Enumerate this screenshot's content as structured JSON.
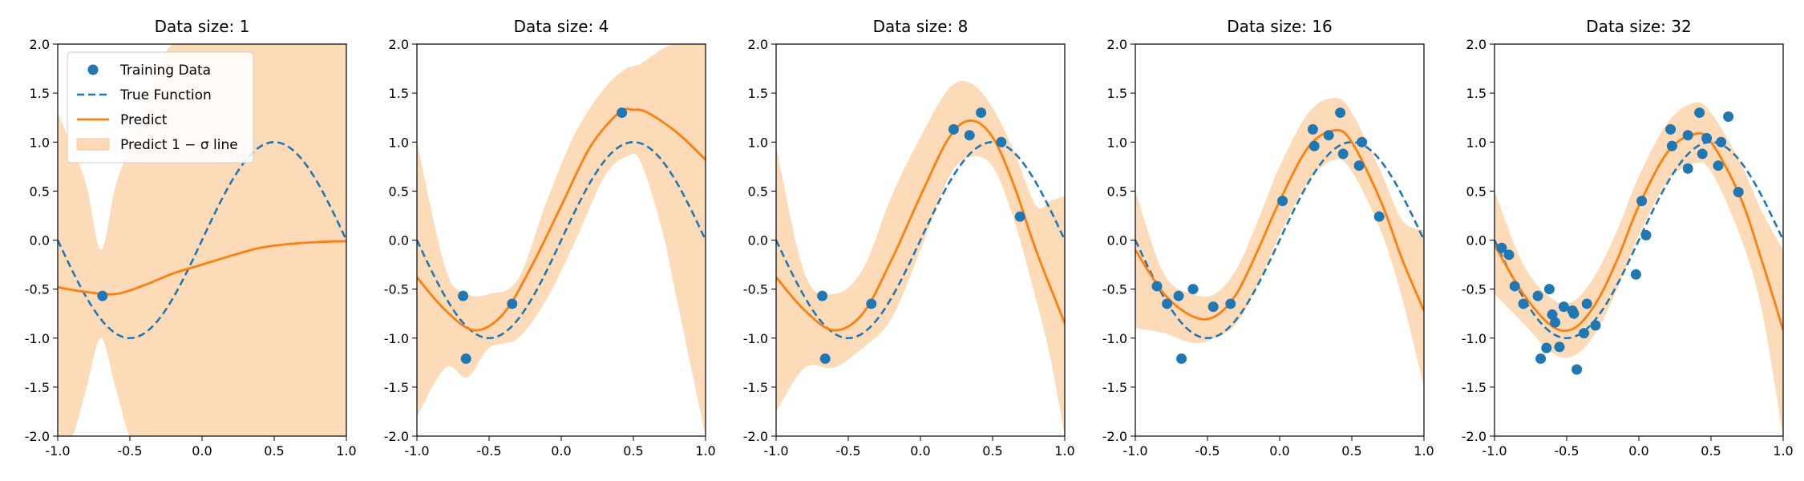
{
  "colors": {
    "training": "#1f77b4",
    "true_function": "#1f77b4",
    "predict": "#ff7f0e",
    "band": "#fdd9b5"
  },
  "legend": {
    "training_data": "Training Data",
    "true_function": "True Function",
    "predict": "Predict",
    "band": "Predict 1 − σ line"
  },
  "chart_data": [
    {
      "type": "line",
      "title": "Data size: 1",
      "xlim": [
        -1,
        1
      ],
      "ylim": [
        -2,
        2
      ],
      "xticks": [
        "-1.0",
        "-0.5",
        "0.0",
        "0.5",
        "1.0"
      ],
      "yticks": [
        "-2.0",
        "-1.5",
        "-1.0",
        "-0.5",
        "0.0",
        "0.5",
        "1.0",
        "1.5",
        "2.0"
      ],
      "training": {
        "x": [
          -0.69
        ],
        "y": [
          -0.57
        ]
      },
      "predict": {
        "x": [
          -1.0,
          -0.8,
          -0.6,
          -0.4,
          -0.2,
          0.0,
          0.2,
          0.4,
          0.6,
          0.8,
          1.0
        ],
        "y": [
          -0.48,
          -0.53,
          -0.55,
          -0.46,
          -0.34,
          -0.25,
          -0.16,
          -0.08,
          -0.04,
          -0.02,
          -0.01
        ]
      },
      "band_upper": {
        "x": [
          -1.0,
          -0.9,
          -0.8,
          -0.7,
          -0.6,
          -0.5,
          -0.4,
          -0.3,
          -0.2,
          0.0,
          0.5,
          1.0
        ],
        "y": [
          1.3,
          0.95,
          0.55,
          -0.1,
          0.55,
          0.95,
          1.35,
          1.75,
          2.0,
          2.0,
          2.0,
          2.0
        ]
      },
      "band_lower": {
        "x": [
          -1.0,
          -0.9,
          -0.8,
          -0.7,
          -0.6,
          -0.5,
          -0.4,
          -0.3,
          -0.2,
          0.0,
          0.5,
          1.0
        ],
        "y": [
          -2.0,
          -2.0,
          -1.5,
          -1.0,
          -1.5,
          -2.0,
          -2.0,
          -2.0,
          -2.0,
          -2.0,
          -2.0,
          -2.0
        ]
      },
      "legend_location": "upper-left"
    },
    {
      "type": "line",
      "title": "Data size: 4",
      "xlim": [
        -1,
        1
      ],
      "ylim": [
        -2,
        2
      ],
      "xticks": [
        "-1.0",
        "-0.5",
        "0.0",
        "0.5",
        "1.0"
      ],
      "yticks": [
        "-2.0",
        "-1.5",
        "-1.0",
        "-0.5",
        "0.0",
        "0.5",
        "1.0",
        "1.5",
        "2.0"
      ],
      "training": {
        "x": [
          -0.68,
          -0.66,
          -0.34,
          0.42
        ],
        "y": [
          -0.57,
          -1.21,
          -0.65,
          1.3
        ]
      },
      "predict": {
        "x": [
          -1.0,
          -0.8,
          -0.6,
          -0.4,
          -0.2,
          0.0,
          0.2,
          0.4,
          0.5,
          0.6,
          0.8,
          1.0
        ],
        "y": [
          -0.38,
          -0.72,
          -0.92,
          -0.75,
          -0.25,
          0.35,
          0.95,
          1.3,
          1.33,
          1.3,
          1.1,
          0.82
        ]
      },
      "band_upper": {
        "x": [
          -1.0,
          -0.8,
          -0.65,
          -0.5,
          -0.3,
          -0.1,
          0.1,
          0.3,
          0.45,
          0.55,
          0.7,
          0.8,
          1.0
        ],
        "y": [
          1.0,
          -0.3,
          -0.55,
          -0.55,
          -0.4,
          0.4,
          1.1,
          1.55,
          1.75,
          1.8,
          1.95,
          2.0,
          2.0
        ]
      },
      "band_lower": {
        "x": [
          -1.0,
          -0.8,
          -0.65,
          -0.5,
          -0.3,
          -0.1,
          0.1,
          0.3,
          0.45,
          0.55,
          0.7,
          0.8,
          1.0
        ],
        "y": [
          -1.8,
          -1.3,
          -1.4,
          -1.1,
          -1.0,
          -0.6,
          0.0,
          0.65,
          0.85,
          0.8,
          0.1,
          -0.6,
          -2.0
        ]
      }
    },
    {
      "type": "line",
      "title": "Data size: 8",
      "xlim": [
        -1,
        1
      ],
      "ylim": [
        -2,
        2
      ],
      "xticks": [
        "-1.0",
        "-0.5",
        "0.0",
        "0.5",
        "1.0"
      ],
      "yticks": [
        "-2.0",
        "-1.5",
        "-1.0",
        "-0.5",
        "0.0",
        "0.5",
        "1.0",
        "1.5",
        "2.0"
      ],
      "training": {
        "x": [
          -0.68,
          -0.66,
          -0.34,
          0.23,
          0.34,
          0.42,
          0.56,
          0.69
        ],
        "y": [
          -0.57,
          -1.21,
          -0.65,
          1.13,
          1.07,
          1.3,
          1.0,
          0.24
        ]
      },
      "predict": {
        "x": [
          -1.0,
          -0.8,
          -0.6,
          -0.4,
          -0.2,
          0.0,
          0.2,
          0.35,
          0.5,
          0.65,
          0.8,
          1.0
        ],
        "y": [
          -0.38,
          -0.72,
          -0.92,
          -0.75,
          -0.2,
          0.45,
          1.05,
          1.22,
          1.05,
          0.55,
          -0.1,
          -0.85
        ]
      },
      "band_upper": {
        "x": [
          -1.0,
          -0.8,
          -0.6,
          -0.4,
          -0.2,
          0.0,
          0.2,
          0.35,
          0.5,
          0.65,
          0.8,
          0.9,
          1.0
        ],
        "y": [
          0.95,
          -0.35,
          -0.55,
          -0.3,
          0.45,
          1.05,
          1.55,
          1.6,
          1.35,
          0.9,
          0.35,
          0.4,
          0.45
        ]
      },
      "band_lower": {
        "x": [
          -1.0,
          -0.8,
          -0.6,
          -0.4,
          -0.2,
          0.0,
          0.2,
          0.35,
          0.5,
          0.65,
          0.8,
          0.9,
          1.0
        ],
        "y": [
          -1.75,
          -1.3,
          -1.3,
          -1.1,
          -0.8,
          -0.1,
          0.65,
          0.85,
          0.75,
          0.2,
          -0.6,
          -1.2,
          -2.0
        ]
      }
    },
    {
      "type": "line",
      "title": "Data size: 16",
      "xlim": [
        -1,
        1
      ],
      "ylim": [
        -2,
        2
      ],
      "xticks": [
        "-1.0",
        "-0.5",
        "0.0",
        "0.5",
        "1.0"
      ],
      "yticks": [
        "-2.0",
        "-1.5",
        "-1.0",
        "-0.5",
        "0.0",
        "0.5",
        "1.0",
        "1.5",
        "2.0"
      ],
      "training": {
        "x": [
          -0.85,
          -0.78,
          -0.7,
          -0.68,
          -0.6,
          -0.46,
          -0.34,
          0.02,
          0.23,
          0.24,
          0.34,
          0.42,
          0.44,
          0.55,
          0.57,
          0.69
        ],
        "y": [
          -0.47,
          -0.65,
          -0.57,
          -1.21,
          -0.5,
          -0.68,
          -0.65,
          0.4,
          1.13,
          0.96,
          1.07,
          1.3,
          0.88,
          0.76,
          1.0,
          0.24
        ]
      },
      "predict": {
        "x": [
          -1.0,
          -0.8,
          -0.6,
          -0.45,
          -0.3,
          -0.15,
          0.0,
          0.2,
          0.38,
          0.5,
          0.7,
          0.85,
          1.0
        ],
        "y": [
          -0.1,
          -0.55,
          -0.78,
          -0.78,
          -0.55,
          -0.1,
          0.4,
          0.95,
          1.12,
          1.0,
          0.4,
          -0.2,
          -0.72
        ]
      },
      "band_upper": {
        "x": [
          -1.0,
          -0.8,
          -0.6,
          -0.45,
          -0.3,
          -0.15,
          0.0,
          0.2,
          0.38,
          0.5,
          0.7,
          0.85,
          1.0
        ],
        "y": [
          0.5,
          -0.35,
          -0.55,
          -0.55,
          -0.3,
          0.2,
          0.75,
          1.3,
          1.45,
          1.3,
          0.7,
          0.2,
          0.1
        ]
      },
      "band_lower": {
        "x": [
          -1.0,
          -0.8,
          -0.6,
          -0.45,
          -0.3,
          -0.15,
          0.0,
          0.2,
          0.38,
          0.5,
          0.7,
          0.85,
          1.0
        ],
        "y": [
          -0.9,
          -0.95,
          -1.05,
          -1.0,
          -0.85,
          -0.45,
          0.05,
          0.6,
          0.82,
          0.7,
          0.1,
          -0.6,
          -1.5
        ]
      }
    },
    {
      "type": "line",
      "title": "Data size: 32",
      "xlim": [
        -1,
        1
      ],
      "ylim": [
        -2,
        2
      ],
      "xticks": [
        "-1.0",
        "-0.5",
        "0.0",
        "0.5",
        "1.0"
      ],
      "yticks": [
        "-2.0",
        "-1.5",
        "-1.0",
        "-0.5",
        "0.0",
        "0.5",
        "1.0",
        "1.5",
        "2.0"
      ],
      "training": {
        "x": [
          -0.95,
          -0.9,
          -0.86,
          -0.8,
          -0.7,
          -0.68,
          -0.64,
          -0.62,
          -0.6,
          -0.58,
          -0.55,
          -0.52,
          -0.46,
          -0.45,
          -0.43,
          -0.38,
          -0.36,
          -0.3,
          -0.02,
          0.02,
          0.05,
          0.22,
          0.23,
          0.34,
          0.34,
          0.42,
          0.44,
          0.47,
          0.55,
          0.57,
          0.62,
          0.69
        ],
        "y": [
          -0.08,
          -0.15,
          -0.47,
          -0.65,
          -0.57,
          -1.21,
          -1.1,
          -0.5,
          -0.76,
          -0.84,
          -1.09,
          -0.68,
          -0.72,
          -0.75,
          -1.32,
          -0.95,
          -0.65,
          -0.87,
          -0.35,
          0.4,
          0.05,
          1.13,
          0.96,
          0.73,
          1.07,
          1.3,
          0.88,
          1.04,
          0.76,
          1.0,
          1.26,
          0.49
        ]
      },
      "predict": {
        "x": [
          -1.0,
          -0.8,
          -0.6,
          -0.45,
          -0.3,
          -0.15,
          0.0,
          0.2,
          0.38,
          0.5,
          0.7,
          0.85,
          1.0
        ],
        "y": [
          -0.05,
          -0.55,
          -0.88,
          -0.9,
          -0.65,
          -0.2,
          0.35,
          0.9,
          1.08,
          1.0,
          0.45,
          -0.2,
          -0.92
        ]
      },
      "band_upper": {
        "x": [
          -1.0,
          -0.8,
          -0.6,
          -0.45,
          -0.3,
          -0.15,
          0.0,
          0.2,
          0.38,
          0.5,
          0.7,
          0.85,
          1.0
        ],
        "y": [
          0.5,
          -0.25,
          -0.6,
          -0.62,
          -0.35,
          0.1,
          0.65,
          1.2,
          1.4,
          1.3,
          0.8,
          0.3,
          -0.1
        ]
      },
      "band_lower": {
        "x": [
          -1.0,
          -0.8,
          -0.6,
          -0.45,
          -0.3,
          -0.15,
          0.0,
          0.2,
          0.38,
          0.5,
          0.7,
          0.85,
          1.0
        ],
        "y": [
          -0.55,
          -0.85,
          -1.15,
          -1.18,
          -0.95,
          -0.5,
          0.05,
          0.6,
          0.78,
          0.7,
          0.05,
          -0.7,
          -2.0
        ]
      }
    }
  ]
}
